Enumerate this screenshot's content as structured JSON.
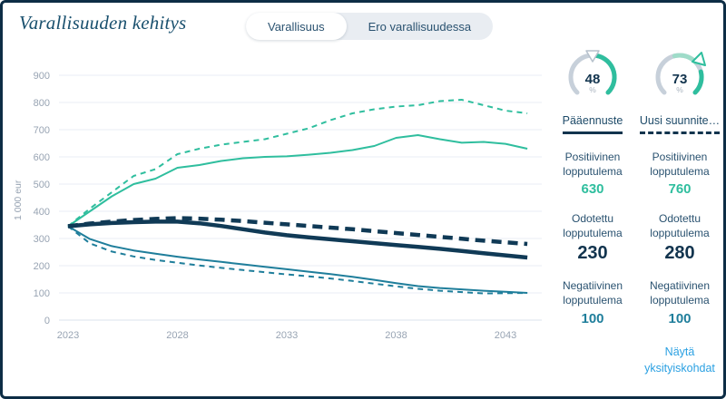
{
  "header": {
    "title": "Varallisuuden kehitys"
  },
  "tabs": {
    "wealth": "Varallisuus",
    "difference": "Ero varallisuudessa"
  },
  "gauges": [
    {
      "value": "48",
      "unit": "%",
      "direction": "down",
      "label_for": "Pääennuste"
    },
    {
      "value": "73",
      "unit": "%",
      "direction": "up",
      "label_for": "Uusi suunnitelma"
    }
  ],
  "columns": {
    "left_header": "Pääennuste",
    "right_header": "Uusi suunnite…"
  },
  "stats": {
    "left": [
      {
        "label": "Positiivinen lopputulema",
        "value": "630"
      },
      {
        "label": "Odotettu lopputulema",
        "value": "230"
      },
      {
        "label": "Negatiivinen lopputulema",
        "value": "100"
      }
    ],
    "right": [
      {
        "label": "Positiivinen lopputulema",
        "value": "760"
      },
      {
        "label": "Odotettu lopputulema",
        "value": "280"
      },
      {
        "label": "Negatiivinen lopputulema",
        "value": "100"
      }
    ]
  },
  "link": {
    "details": "Näytä yksityiskohdat"
  },
  "colors": {
    "positive": "#2fbe9e",
    "expected": "#103a56",
    "negative": "#1f7e9b",
    "link": "#2aa0e2",
    "gauge_track": "#c7d0da",
    "gauge_delta": "#9fdcc9"
  },
  "chart_data": {
    "type": "line",
    "title": "Varallisuuden kehitys",
    "xlabel": "",
    "ylabel": "1 000 eur",
    "ylim": [
      0,
      900
    ],
    "ytick_step": 100,
    "grid": true,
    "legend_position": "right-panel (Pääennuste = solid, Uusi suunnitelma = dashed)",
    "x_years": [
      2023,
      2024,
      2025,
      2026,
      2027,
      2028,
      2029,
      2030,
      2031,
      2032,
      2033,
      2034,
      2035,
      2036,
      2037,
      2038,
      2039,
      2040,
      2041,
      2042,
      2043,
      2044
    ],
    "xticks": [
      2023,
      2028,
      2033,
      2038,
      2043
    ],
    "series": [
      {
        "name": "Positiivinen lopputulema – Uusi suunnitelma",
        "color": "#2fbe9e",
        "dash": true,
        "width": 2,
        "values": [
          345,
          410,
          470,
          530,
          555,
          610,
          630,
          645,
          655,
          665,
          685,
          705,
          735,
          760,
          775,
          785,
          790,
          805,
          810,
          790,
          770,
          760
        ]
      },
      {
        "name": "Positiivinen lopputulema – Pääennuste",
        "color": "#2fbe9e",
        "dash": false,
        "width": 2,
        "values": [
          345,
          400,
          455,
          500,
          520,
          560,
          570,
          585,
          595,
          600,
          602,
          608,
          615,
          625,
          640,
          670,
          680,
          665,
          652,
          655,
          648,
          630
        ]
      },
      {
        "name": "Negatiivinen lopputulema – Uusi suunnitelma",
        "color": "#1f7e9b",
        "dash": true,
        "width": 2,
        "values": [
          345,
          282,
          252,
          234,
          221,
          211,
          201,
          192,
          184,
          176,
          168,
          161,
          153,
          144,
          134,
          124,
          115,
          108,
          103,
          98,
          99,
          100
        ]
      },
      {
        "name": "Negatiivinen lopputulema – Pääennuste",
        "color": "#1f7e9b",
        "dash": false,
        "width": 2,
        "values": [
          345,
          298,
          272,
          256,
          244,
          233,
          223,
          214,
          205,
          196,
          187,
          178,
          169,
          159,
          148,
          136,
          125,
          118,
          113,
          108,
          104,
          100
        ]
      },
      {
        "name": "Odotettu lopputulema – Uusi suunnitelma",
        "color": "#103a56",
        "dash": true,
        "width": 4.5,
        "values": [
          345,
          355,
          362,
          368,
          372,
          375,
          373,
          369,
          364,
          358,
          352,
          346,
          340,
          334,
          327,
          320,
          313,
          306,
          299,
          292,
          286,
          280
        ]
      },
      {
        "name": "Odotettu lopputulema – Pääennuste",
        "color": "#103a56",
        "dash": false,
        "width": 4.5,
        "values": [
          345,
          352,
          357,
          360,
          362,
          362,
          356,
          346,
          334,
          322,
          312,
          304,
          297,
          290,
          283,
          276,
          269,
          262,
          254,
          246,
          238,
          230
        ]
      }
    ]
  }
}
